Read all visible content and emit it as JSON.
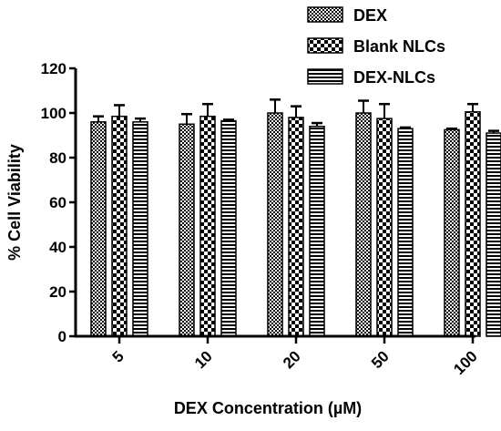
{
  "chart_data": {
    "type": "bar",
    "title": "",
    "xlabel": "DEX Concentration (µM)",
    "ylabel": "% Cell Viability",
    "ylim": [
      0,
      120
    ],
    "yticks": [
      0,
      20,
      40,
      60,
      80,
      100,
      120
    ],
    "categories": [
      "5",
      "10",
      "20",
      "50",
      "100"
    ],
    "series": [
      {
        "name": "DEX",
        "pattern": "checker-fine",
        "values": [
          96,
          95,
          100,
          100,
          92.5
        ],
        "errors": [
          2.5,
          4.5,
          6,
          5.5,
          0.5
        ]
      },
      {
        "name": "Blank NLCs",
        "pattern": "checker-coarse",
        "values": [
          98.5,
          98.5,
          98,
          97.5,
          100.5
        ],
        "errors": [
          5,
          5.5,
          5,
          6.5,
          3.5
        ]
      },
      {
        "name": "DEX-NLCs",
        "pattern": "horizontal-stripes",
        "values": [
          96,
          96.5,
          94,
          93,
          91
        ],
        "errors": [
          1.5,
          0.5,
          1.5,
          0.5,
          1
        ]
      }
    ],
    "legend_position": "top-right",
    "grid": false,
    "colors": {
      "bars": "#000000",
      "background": "#ffffff"
    }
  }
}
